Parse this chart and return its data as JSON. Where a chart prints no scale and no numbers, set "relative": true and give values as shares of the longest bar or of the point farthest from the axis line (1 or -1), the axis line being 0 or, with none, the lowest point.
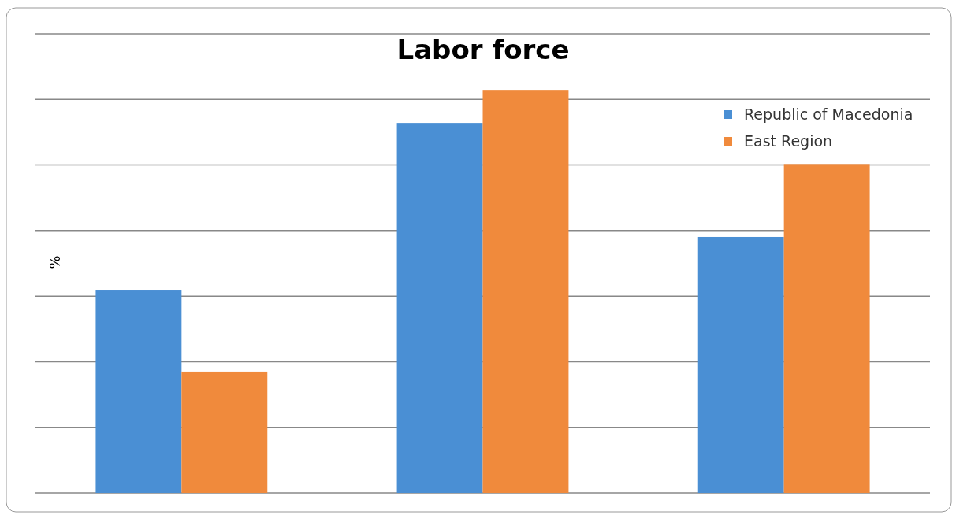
{
  "chart_data": {
    "type": "bar",
    "title": "Labor force",
    "ylabel": "%",
    "relative": true,
    "grid": true,
    "legend": "top right",
    "categories": [
      null,
      null,
      null
    ],
    "series": [
      {
        "name": "Republic of Macedonia",
        "color": "#4a8fd4",
        "values": [
          0.504,
          0.918,
          0.635
        ]
      },
      {
        "name": "East Region",
        "color": "#f08a3c",
        "values": [
          0.301,
          1,
          0.816
        ]
      }
    ]
  }
}
